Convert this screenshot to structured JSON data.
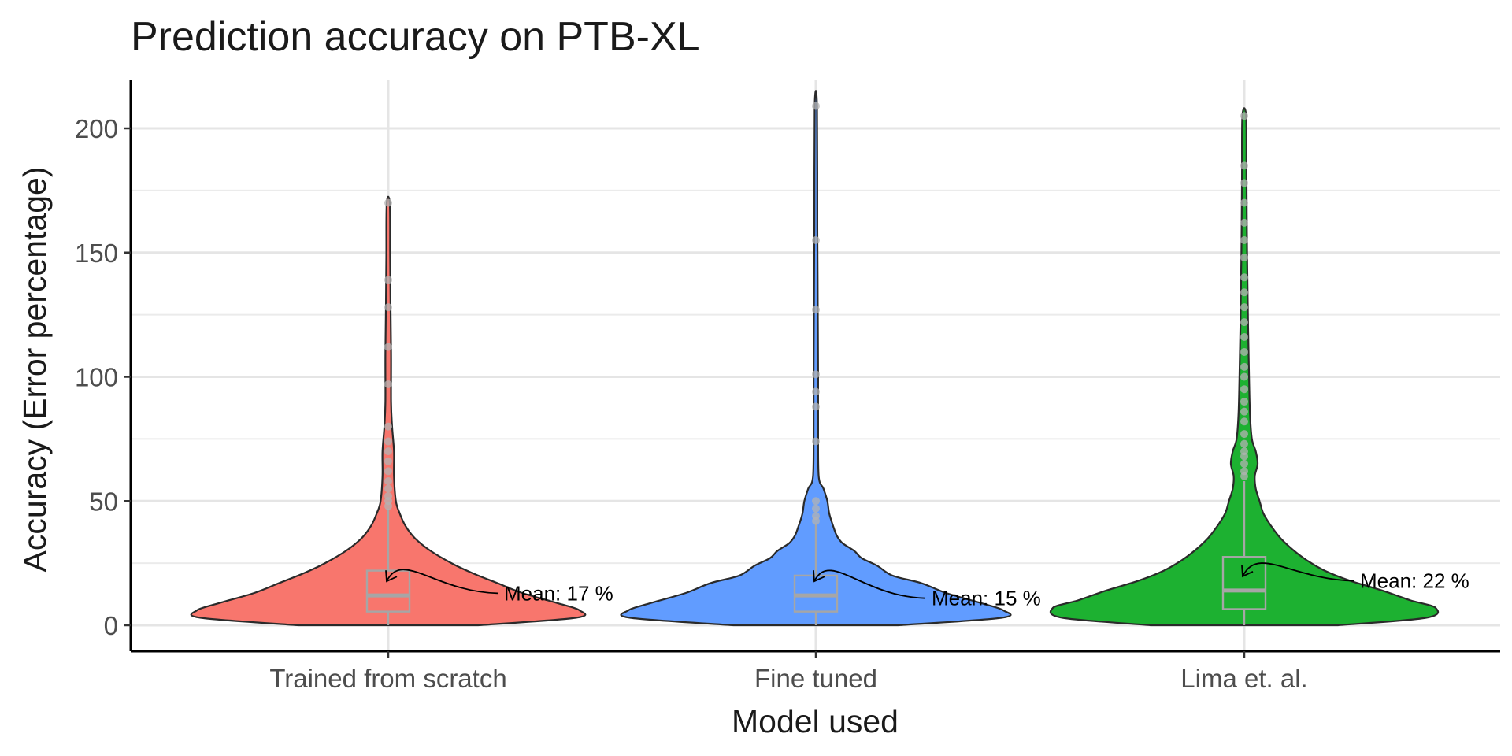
{
  "chart_data": {
    "type": "violin",
    "title": "Prediction accuracy on PTB-XL",
    "xlabel": "Model used",
    "ylabel": "Accuracy (Error percentage)",
    "ylim": [
      -10,
      220
    ],
    "yticks": [
      0,
      50,
      100,
      150,
      200
    ],
    "grid": true,
    "legend": "none",
    "categories": [
      "Trained from scratch",
      "Fine tuned",
      "Lima et. al."
    ],
    "series": [
      {
        "category": "Trained from scratch",
        "color": "#F8766D",
        "mean_label": "Mean: 17 %",
        "mean": 17,
        "box": {
          "q1": 5.5,
          "median": 12,
          "q3": 22,
          "whisker_low": 0,
          "whisker_high": 47
        },
        "max": 170,
        "profile": [
          [
            0,
            0.47
          ],
          [
            3,
            0.98
          ],
          [
            6,
            1.0
          ],
          [
            9,
            0.88
          ],
          [
            13,
            0.7
          ],
          [
            17,
            0.57
          ],
          [
            21,
            0.44
          ],
          [
            25,
            0.33
          ],
          [
            30,
            0.22
          ],
          [
            35,
            0.14
          ],
          [
            40,
            0.09
          ],
          [
            45,
            0.06
          ],
          [
            50,
            0.04
          ],
          [
            60,
            0.03
          ],
          [
            70,
            0.03
          ],
          [
            80,
            0.02
          ],
          [
            90,
            0.015
          ],
          [
            110,
            0.015
          ],
          [
            130,
            0.012
          ],
          [
            150,
            0.01
          ],
          [
            170,
            0.008
          ]
        ],
        "outliers": [
          48,
          50,
          52,
          55,
          58,
          62,
          66,
          70,
          74,
          80,
          97,
          112,
          128,
          139,
          170
        ]
      },
      {
        "category": "Fine tuned",
        "color": "#619CFF",
        "mean_label": "Mean: 15 %",
        "mean": 15,
        "box": {
          "q1": 5.5,
          "median": 12,
          "q3": 20,
          "whisker_low": 0,
          "whisker_high": 41
        },
        "max": 209,
        "profile": [
          [
            0,
            0.43
          ],
          [
            3,
            0.97
          ],
          [
            6,
            0.98
          ],
          [
            9,
            0.86
          ],
          [
            13,
            0.68
          ],
          [
            17,
            0.55
          ],
          [
            20,
            0.4
          ],
          [
            24,
            0.32
          ],
          [
            27,
            0.24
          ],
          [
            30,
            0.2
          ],
          [
            33,
            0.14
          ],
          [
            36,
            0.11
          ],
          [
            40,
            0.09
          ],
          [
            45,
            0.07
          ],
          [
            50,
            0.06
          ],
          [
            55,
            0.04
          ],
          [
            60,
            0.015
          ],
          [
            80,
            0.012
          ],
          [
            100,
            0.012
          ],
          [
            130,
            0.01
          ],
          [
            160,
            0.008
          ],
          [
            209,
            0.006
          ]
        ],
        "outliers": [
          42,
          44,
          47,
          50,
          74,
          88,
          94,
          101,
          127,
          155,
          209
        ]
      },
      {
        "category": "Lima et. al.",
        "color": "#1DB131",
        "mean_label": "Mean: 22 %",
        "mean": 22,
        "box": {
          "q1": 6.5,
          "median": 14,
          "q3": 27.5,
          "whisker_low": 0,
          "whisker_high": 58
        },
        "max": 205,
        "profile": [
          [
            0,
            0.49
          ],
          [
            3,
            0.95
          ],
          [
            7,
            1.0
          ],
          [
            10,
            0.87
          ],
          [
            14,
            0.72
          ],
          [
            18,
            0.55
          ],
          [
            22,
            0.42
          ],
          [
            26,
            0.33
          ],
          [
            30,
            0.26
          ],
          [
            35,
            0.19
          ],
          [
            40,
            0.14
          ],
          [
            45,
            0.1
          ],
          [
            50,
            0.08
          ],
          [
            55,
            0.06
          ],
          [
            60,
            0.055
          ],
          [
            65,
            0.07
          ],
          [
            70,
            0.06
          ],
          [
            75,
            0.04
          ],
          [
            85,
            0.03
          ],
          [
            100,
            0.025
          ],
          [
            120,
            0.02
          ],
          [
            150,
            0.015
          ],
          [
            180,
            0.012
          ],
          [
            205,
            0.01
          ]
        ],
        "outliers": [
          60,
          62,
          65,
          68,
          70,
          73,
          77,
          82,
          86,
          90,
          95,
          100,
          104,
          110,
          116,
          122,
          128,
          134,
          140,
          148,
          155,
          162,
          170,
          178,
          185,
          205
        ]
      }
    ]
  }
}
